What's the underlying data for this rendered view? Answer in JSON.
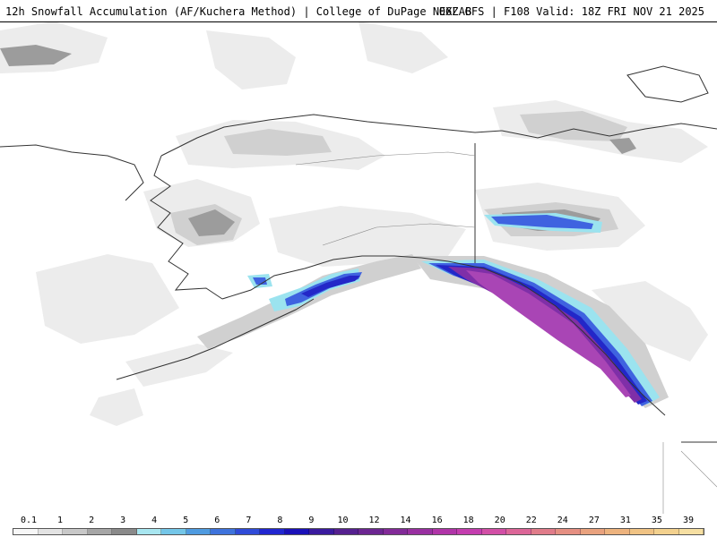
{
  "header": {
    "title_left": "12h Snowfall Accumulation (AF/Kuchera Method) | College of DuPage NEXLAB",
    "title_right": "06Z GFS | F108 Valid: 18Z FRI NOV 21 2025"
  },
  "colorbar": {
    "labels": [
      "0.1",
      "1",
      "2",
      "3",
      "4",
      "5",
      "6",
      "7",
      "8",
      "9",
      "10",
      "12",
      "14",
      "16",
      "18",
      "20",
      "22",
      "24",
      "27",
      "31",
      "35",
      "39"
    ],
    "colors": [
      "#f7f7f7",
      "#e3e3e3",
      "#c8c8c8",
      "#a6a6a6",
      "#8a8a8a",
      "#a8e6f0",
      "#74c6e8",
      "#4f9be0",
      "#3e73dc",
      "#2f4bd8",
      "#2126d0",
      "#1a10b8",
      "#3a1a9e",
      "#55208f",
      "#6c2591",
      "#822a98",
      "#992fa1",
      "#b034a8",
      "#c43daf",
      "#d24fa6",
      "#dc6698",
      "#e07c8a",
      "#e58f82",
      "#e9a27e",
      "#edb37e",
      "#f0c384",
      "#f3d18e",
      "#f6dfa2"
    ]
  },
  "map": {
    "colors": {
      "snow_light": "#ececec",
      "snow_mid": "#d0d0d0",
      "snow_dark": "#9c9c9c",
      "snow_cyan": "#9be3ef",
      "snow_blue": "#3f63e0",
      "snow_navy": "#2327c8",
      "snow_purple": "#7f2fa8",
      "snow_magenta": "#a945b5",
      "coast": "#333333"
    }
  }
}
